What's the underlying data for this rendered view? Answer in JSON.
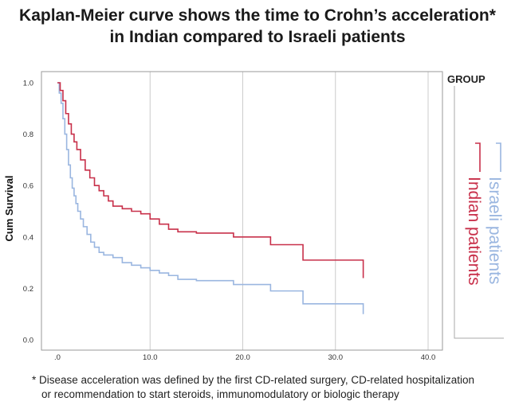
{
  "title_lines": [
    "Kaplan-Meier curve shows the time to Crohn’s acceleration*",
    "in Indian compared to Israeli patients"
  ],
  "footnote_lines": [
    "* Disease acceleration was defined by the first CD-related surgery, CD-related hospitalization",
    "or recommendation to start steroids, immunomodulatory or biologic therapy"
  ],
  "chart_data": {
    "type": "line",
    "ylabel": "Cum Survival",
    "xlabel": "",
    "xlim": [
      0,
      40
    ],
    "ylim": [
      0,
      1
    ],
    "x_ticks": [
      ".0",
      "10.0",
      "20.0",
      "30.0",
      "40.0"
    ],
    "y_ticks": [
      "0.0",
      "0.2",
      "0.4",
      "0.6",
      "0.8",
      "1.0"
    ],
    "grid": true,
    "legend": {
      "title": "GROUP",
      "placement": "right",
      "entries": [
        "Israeli patients",
        "Indian patients"
      ]
    },
    "series": [
      {
        "name": "Israeli patients",
        "color": "#9ab6e0",
        "x": [
          0,
          0.2,
          0.4,
          0.6,
          0.8,
          1.0,
          1.2,
          1.4,
          1.6,
          1.8,
          2.0,
          2.2,
          2.5,
          2.8,
          3.2,
          3.6,
          4.0,
          4.5,
          5.0,
          5.5,
          6.0,
          7.0,
          8.0,
          9.0,
          10.0,
          11.0,
          12.0,
          13.0,
          15.0,
          19.0,
          23.0,
          26.5,
          33.0
        ],
        "y": [
          1.0,
          0.96,
          0.92,
          0.86,
          0.8,
          0.74,
          0.68,
          0.63,
          0.59,
          0.56,
          0.53,
          0.5,
          0.47,
          0.44,
          0.41,
          0.38,
          0.36,
          0.34,
          0.33,
          0.33,
          0.32,
          0.3,
          0.29,
          0.28,
          0.27,
          0.26,
          0.25,
          0.235,
          0.23,
          0.215,
          0.19,
          0.14,
          0.1
        ]
      },
      {
        "name": "Indian patients",
        "color": "#c8304a",
        "x": [
          0,
          0.3,
          0.6,
          0.9,
          1.2,
          1.5,
          1.8,
          2.1,
          2.5,
          3.0,
          3.5,
          4.0,
          4.5,
          5.0,
          5.5,
          6.0,
          7.0,
          8.0,
          9.0,
          10.0,
          11.0,
          12.0,
          13.0,
          15.0,
          19.0,
          23.0,
          26.5,
          33.0
        ],
        "y": [
          1.0,
          0.97,
          0.93,
          0.88,
          0.84,
          0.8,
          0.77,
          0.74,
          0.7,
          0.66,
          0.63,
          0.6,
          0.58,
          0.56,
          0.54,
          0.52,
          0.51,
          0.5,
          0.49,
          0.47,
          0.45,
          0.43,
          0.42,
          0.415,
          0.4,
          0.37,
          0.31,
          0.24
        ]
      }
    ]
  }
}
